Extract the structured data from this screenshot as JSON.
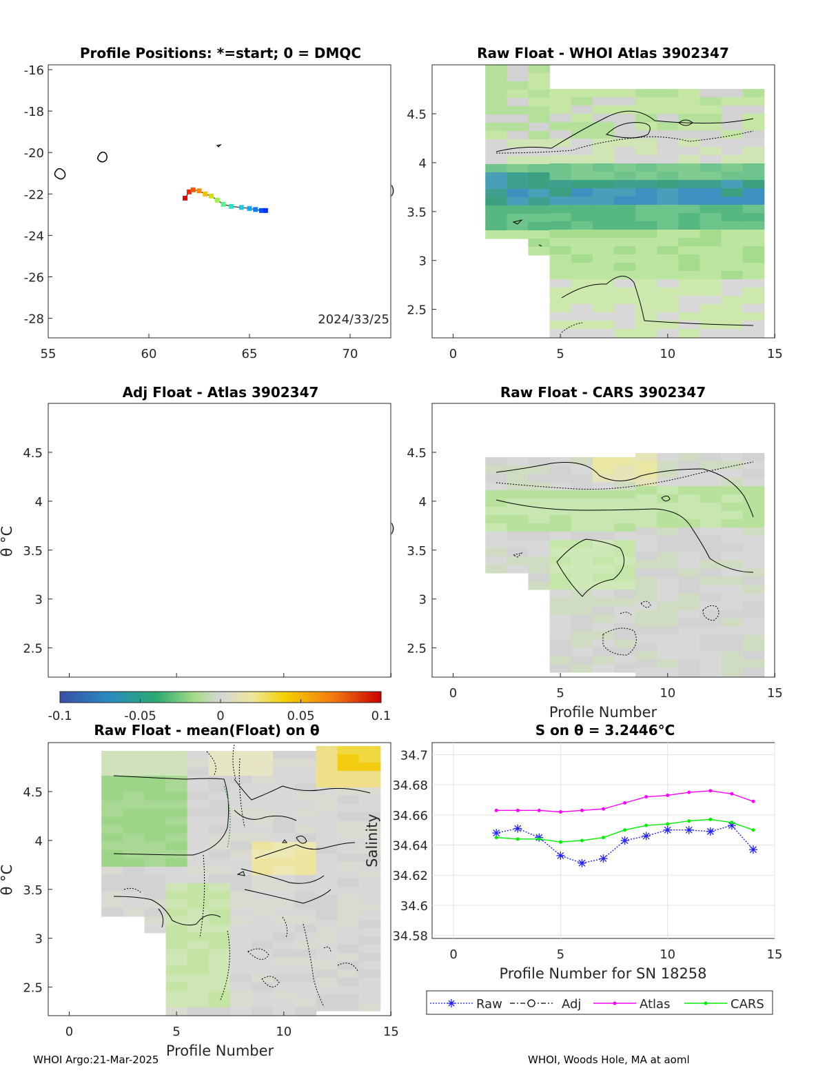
{
  "panels": {
    "map": {
      "title": "Profile Positions: *=start; 0 = DMQC",
      "xticks": [
        "55",
        "60",
        "65",
        "70"
      ],
      "yticks": [
        "-16",
        "-18",
        "-20",
        "-22",
        "-24",
        "-26",
        "-28"
      ],
      "xlim": [
        55,
        72
      ],
      "ylim": [
        -29,
        -15.7
      ],
      "date_label": "2024/33/25"
    },
    "whoi": {
      "title": "Raw Float - WHOI Atlas  3902347",
      "xticks": [
        "0",
        "5",
        "10",
        "15"
      ],
      "yticks": [
        "4.5",
        "4",
        "3.5",
        "3",
        "2.5"
      ]
    },
    "adj": {
      "title": "Adj Float - Atlas  3902347",
      "yticks": [
        "4.5",
        "4",
        "3.5",
        "3",
        "2.5"
      ],
      "ylabel": "θ °C"
    },
    "cars": {
      "title": "Raw Float - CARS  3902347",
      "xticks": [
        "0",
        "5",
        "10",
        "15"
      ],
      "yticks": [
        "4.5",
        "4",
        "3.5",
        "3",
        "2.5"
      ],
      "xlabel": "Profile Number"
    },
    "colorbar": {
      "ticks": [
        "-0.1",
        "-0.05",
        "0",
        "0.05",
        "0.1"
      ],
      "range": [
        -0.1,
        0.1
      ]
    },
    "mean": {
      "title": "Raw Float - mean(Float) on θ",
      "xticks": [
        "0",
        "5",
        "10",
        "15"
      ],
      "yticks": [
        "4.5",
        "4",
        "3.5",
        "3",
        "2.5"
      ],
      "xlabel": "Profile Number",
      "ylabel": "θ °C"
    },
    "salinity": {
      "title": "S on θ = 3.2446°C",
      "xticks": [
        "0",
        "5",
        "10",
        "15"
      ],
      "yticks": [
        "34.7",
        "34.68",
        "34.66",
        "34.64",
        "34.62",
        "34.6",
        "34.58"
      ],
      "xlabel": "Profile Number for SN 18258",
      "ylabel": "Salinity"
    }
  },
  "legend": {
    "raw": "Raw",
    "adj": "Adj",
    "atlas": "Atlas",
    "cars": "CARS"
  },
  "footer": {
    "left": "WHOI Argo:21-Mar-2025",
    "right": "WHOI, Woods Hole, MA at aoml"
  },
  "colors": {
    "raw": "#1f1fff",
    "atlas": "#ff00ff",
    "cars": "#00ee00",
    "map_start": "#dd0000",
    "map_end": "#0030ff"
  },
  "chart_data": [
    {
      "type": "scatter",
      "name": "profile-positions",
      "x": [
        61.8,
        62.0,
        62.2,
        62.5,
        62.8,
        63.1,
        63.4,
        63.7,
        64.1,
        64.6,
        65.0,
        65.3,
        65.6,
        65.8
      ],
      "y": [
        -22.2,
        -21.9,
        -21.8,
        -21.85,
        -22.0,
        -22.1,
        -22.3,
        -22.5,
        -22.6,
        -22.65,
        -22.7,
        -22.75,
        -22.8,
        -22.8
      ],
      "xlim": [
        55,
        72
      ],
      "ylim": [
        -29,
        -15.7
      ]
    },
    {
      "type": "line",
      "name": "salinity-on-theta",
      "x": [
        2,
        3,
        4,
        5,
        6,
        7,
        8,
        9,
        10,
        11,
        12,
        13,
        14
      ],
      "xlim": [
        -1,
        15
      ],
      "ylim": [
        34.578,
        34.708
      ],
      "series": [
        {
          "name": "Raw",
          "values": [
            34.648,
            34.651,
            34.645,
            34.633,
            34.628,
            34.631,
            34.643,
            34.646,
            34.65,
            34.65,
            34.649,
            34.653,
            34.637
          ]
        },
        {
          "name": "Atlas",
          "values": [
            34.663,
            34.663,
            34.663,
            34.662,
            34.663,
            34.664,
            34.668,
            34.672,
            34.673,
            34.675,
            34.676,
            34.674,
            34.669
          ]
        },
        {
          "name": "CARS",
          "values": [
            34.645,
            34.644,
            34.644,
            34.642,
            34.643,
            34.645,
            34.65,
            34.653,
            34.654,
            34.656,
            34.657,
            34.655,
            34.65
          ]
        }
      ]
    }
  ]
}
